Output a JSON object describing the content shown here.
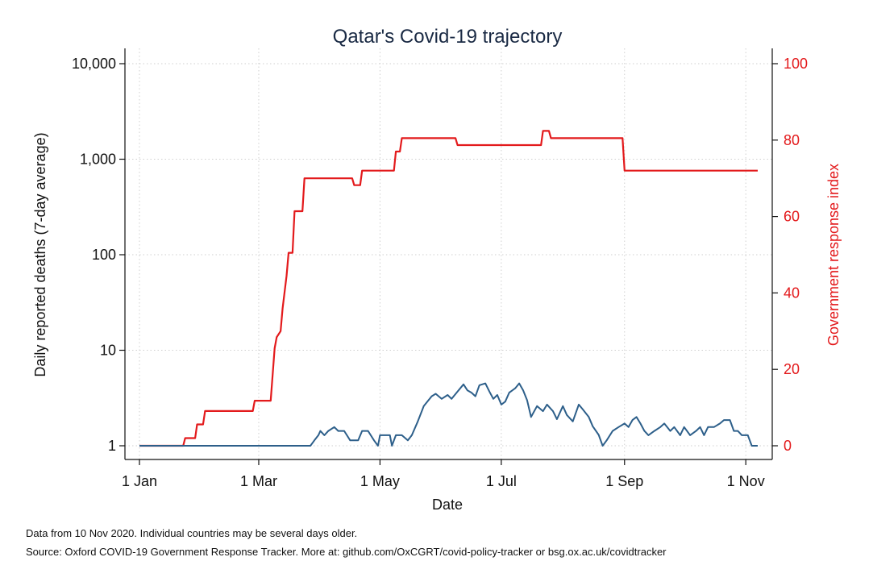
{
  "chart_data": {
    "type": "line",
    "title": "Qatar's Covid-19 trajectory",
    "xlabel": "Date",
    "ylabel_left": "Daily reported deaths (7-day average)",
    "ylabel_right": "Government response index",
    "x_ticks": [
      {
        "date": "2020-01-01",
        "label": "1 Jan"
      },
      {
        "date": "2020-03-01",
        "label": "1 Mar"
      },
      {
        "date": "2020-05-01",
        "label": "1 May"
      },
      {
        "date": "2020-07-01",
        "label": "1 Jul"
      },
      {
        "date": "2020-09-01",
        "label": "1 Sep"
      },
      {
        "date": "2020-11-01",
        "label": "1 Nov"
      }
    ],
    "xlim": [
      "2020-01-01",
      "2020-11-07"
    ],
    "left_axis": {
      "scale": "log",
      "ylim": [
        1,
        10000
      ],
      "ticks": [
        {
          "value": 1,
          "label": "1"
        },
        {
          "value": 10,
          "label": "10"
        },
        {
          "value": 100,
          "label": "100"
        },
        {
          "value": 1000,
          "label": "1,000"
        },
        {
          "value": 10000,
          "label": "10,000"
        }
      ]
    },
    "right_axis": {
      "scale": "linear",
      "ylim": [
        0,
        100
      ],
      "ticks": [
        {
          "value": 0,
          "label": "0"
        },
        {
          "value": 20,
          "label": "20"
        },
        {
          "value": 40,
          "label": "40"
        },
        {
          "value": 60,
          "label": "60"
        },
        {
          "value": 80,
          "label": "80"
        },
        {
          "value": 100,
          "label": "100"
        }
      ]
    },
    "grid": true,
    "series": [
      {
        "axis": "right",
        "color": "#e31a1c",
        "step": true,
        "points": [
          [
            "2020-01-01",
            0
          ],
          [
            "2020-01-23",
            0
          ],
          [
            "2020-01-24",
            2
          ],
          [
            "2020-01-29",
            2
          ],
          [
            "2020-01-30",
            5.6
          ],
          [
            "2020-02-02",
            5.6
          ],
          [
            "2020-02-03",
            9.1
          ],
          [
            "2020-02-27",
            9.1
          ],
          [
            "2020-02-28",
            11.8
          ],
          [
            "2020-03-07",
            11.8
          ],
          [
            "2020-03-08",
            18.5
          ],
          [
            "2020-03-09",
            25.5
          ],
          [
            "2020-03-10",
            28.4
          ],
          [
            "2020-03-12",
            30
          ],
          [
            "2020-03-13",
            36
          ],
          [
            "2020-03-15",
            44.5
          ],
          [
            "2020-03-16",
            50.5
          ],
          [
            "2020-03-18",
            50.5
          ],
          [
            "2020-03-19",
            61.4
          ],
          [
            "2020-03-23",
            61.4
          ],
          [
            "2020-03-24",
            70
          ],
          [
            "2020-04-17",
            70
          ],
          [
            "2020-04-18",
            68.2
          ],
          [
            "2020-04-21",
            68.2
          ],
          [
            "2020-04-22",
            72
          ],
          [
            "2020-05-08",
            72
          ],
          [
            "2020-05-09",
            77
          ],
          [
            "2020-05-11",
            77
          ],
          [
            "2020-05-12",
            80.5
          ],
          [
            "2020-06-08",
            80.5
          ],
          [
            "2020-06-09",
            78.7
          ],
          [
            "2020-07-21",
            78.7
          ],
          [
            "2020-07-22",
            82.4
          ],
          [
            "2020-07-25",
            82.4
          ],
          [
            "2020-07-26",
            80.5
          ],
          [
            "2020-08-31",
            80.5
          ],
          [
            "2020-09-01",
            72
          ],
          [
            "2020-11-07",
            72
          ]
        ]
      },
      {
        "axis": "left",
        "color": "#2d5f8a",
        "step": false,
        "points": [
          [
            "2020-01-01",
            1
          ],
          [
            "2020-03-27",
            1
          ],
          [
            "2020-03-29",
            1.14
          ],
          [
            "2020-03-31",
            1.29
          ],
          [
            "2020-04-01",
            1.43
          ],
          [
            "2020-04-03",
            1.29
          ],
          [
            "2020-04-05",
            1.43
          ],
          [
            "2020-04-08",
            1.57
          ],
          [
            "2020-04-10",
            1.43
          ],
          [
            "2020-04-13",
            1.43
          ],
          [
            "2020-04-16",
            1.14
          ],
          [
            "2020-04-20",
            1.14
          ],
          [
            "2020-04-22",
            1.43
          ],
          [
            "2020-04-25",
            1.43
          ],
          [
            "2020-04-28",
            1.14
          ],
          [
            "2020-04-30",
            1
          ],
          [
            "2020-05-01",
            1.29
          ],
          [
            "2020-05-04",
            1.29
          ],
          [
            "2020-05-06",
            1.29
          ],
          [
            "2020-05-07",
            1
          ],
          [
            "2020-05-09",
            1.29
          ],
          [
            "2020-05-12",
            1.29
          ],
          [
            "2020-05-15",
            1.14
          ],
          [
            "2020-05-17",
            1.29
          ],
          [
            "2020-05-20",
            1.8
          ],
          [
            "2020-05-23",
            2.6
          ],
          [
            "2020-05-27",
            3.3
          ],
          [
            "2020-05-29",
            3.5
          ],
          [
            "2020-06-01",
            3.1
          ],
          [
            "2020-06-04",
            3.4
          ],
          [
            "2020-06-06",
            3.1
          ],
          [
            "2020-06-09",
            3.7
          ],
          [
            "2020-06-12",
            4.4
          ],
          [
            "2020-06-14",
            3.8
          ],
          [
            "2020-06-16",
            3.6
          ],
          [
            "2020-06-18",
            3.3
          ],
          [
            "2020-06-20",
            4.3
          ],
          [
            "2020-06-23",
            4.5
          ],
          [
            "2020-06-25",
            3.7
          ],
          [
            "2020-06-27",
            3.1
          ],
          [
            "2020-06-29",
            3.4
          ],
          [
            "2020-07-01",
            2.7
          ],
          [
            "2020-07-03",
            2.9
          ],
          [
            "2020-07-05",
            3.6
          ],
          [
            "2020-07-08",
            4.0
          ],
          [
            "2020-07-10",
            4.5
          ],
          [
            "2020-07-12",
            3.8
          ],
          [
            "2020-07-14",
            3.0
          ],
          [
            "2020-07-16",
            2.0
          ],
          [
            "2020-07-19",
            2.6
          ],
          [
            "2020-07-22",
            2.3
          ],
          [
            "2020-07-24",
            2.7
          ],
          [
            "2020-07-27",
            2.3
          ],
          [
            "2020-07-29",
            1.9
          ],
          [
            "2020-08-01",
            2.6
          ],
          [
            "2020-08-03",
            2.1
          ],
          [
            "2020-08-06",
            1.8
          ],
          [
            "2020-08-09",
            2.7
          ],
          [
            "2020-08-11",
            2.4
          ],
          [
            "2020-08-14",
            2.0
          ],
          [
            "2020-08-16",
            1.6
          ],
          [
            "2020-08-19",
            1.3
          ],
          [
            "2020-08-21",
            1.0
          ],
          [
            "2020-08-23",
            1.14
          ],
          [
            "2020-08-26",
            1.43
          ],
          [
            "2020-08-29",
            1.57
          ],
          [
            "2020-09-01",
            1.71
          ],
          [
            "2020-09-03",
            1.57
          ],
          [
            "2020-09-05",
            1.86
          ],
          [
            "2020-09-07",
            2.0
          ],
          [
            "2020-09-09",
            1.71
          ],
          [
            "2020-09-11",
            1.43
          ],
          [
            "2020-09-13",
            1.29
          ],
          [
            "2020-09-16",
            1.43
          ],
          [
            "2020-09-19",
            1.57
          ],
          [
            "2020-09-21",
            1.71
          ],
          [
            "2020-09-24",
            1.43
          ],
          [
            "2020-09-26",
            1.57
          ],
          [
            "2020-09-29",
            1.29
          ],
          [
            "2020-10-01",
            1.57
          ],
          [
            "2020-10-04",
            1.29
          ],
          [
            "2020-10-07",
            1.43
          ],
          [
            "2020-10-09",
            1.57
          ],
          [
            "2020-10-11",
            1.29
          ],
          [
            "2020-10-13",
            1.57
          ],
          [
            "2020-10-16",
            1.57
          ],
          [
            "2020-10-19",
            1.71
          ],
          [
            "2020-10-21",
            1.86
          ],
          [
            "2020-10-24",
            1.86
          ],
          [
            "2020-10-26",
            1.43
          ],
          [
            "2020-10-28",
            1.43
          ],
          [
            "2020-10-30",
            1.29
          ],
          [
            "2020-11-02",
            1.29
          ],
          [
            "2020-11-04",
            1.0
          ],
          [
            "2020-11-07",
            1.0
          ]
        ]
      }
    ]
  },
  "footnotes": {
    "line1": "Data from 10 Nov 2020. Individual countries may be several days older.",
    "line2": "Source: Oxford COVID-19 Government Response Tracker. More at: github.com/OxCGRT/covid-policy-tracker or bsg.ox.ac.uk/covidtracker"
  }
}
